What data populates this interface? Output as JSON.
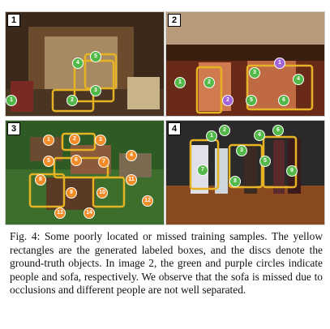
{
  "figure": {
    "panels": [
      {
        "number": "1",
        "discs": [
          "1",
          "2",
          "3",
          "4",
          "5"
        ]
      },
      {
        "number": "2",
        "discs": [
          "1",
          "2",
          "3",
          "4",
          "5",
          "6",
          "1",
          "2"
        ]
      },
      {
        "number": "3",
        "discs": [
          "1",
          "2",
          "3",
          "4",
          "5",
          "6",
          "7",
          "8",
          "9",
          "10",
          "11",
          "12",
          "13",
          "14"
        ]
      },
      {
        "number": "4",
        "discs": [
          "1",
          "2",
          "3",
          "4",
          "5",
          "6",
          "7",
          "8",
          "9"
        ]
      }
    ],
    "colors": {
      "box": "#e6b422",
      "disc_green": "#52b848",
      "disc_purple": "#a064d6",
      "disc_orange": "#f28c28"
    }
  },
  "caption": "Fig. 4: Some poorly located or missed training samples. The yellow rectangles are the generated labeled boxes, and the discs denote the ground-truth objects. In image 2, the green and purple circles indicate people and sofa, respectively. We observe that the sofa is missed due to occlusions and different people are not well separated."
}
